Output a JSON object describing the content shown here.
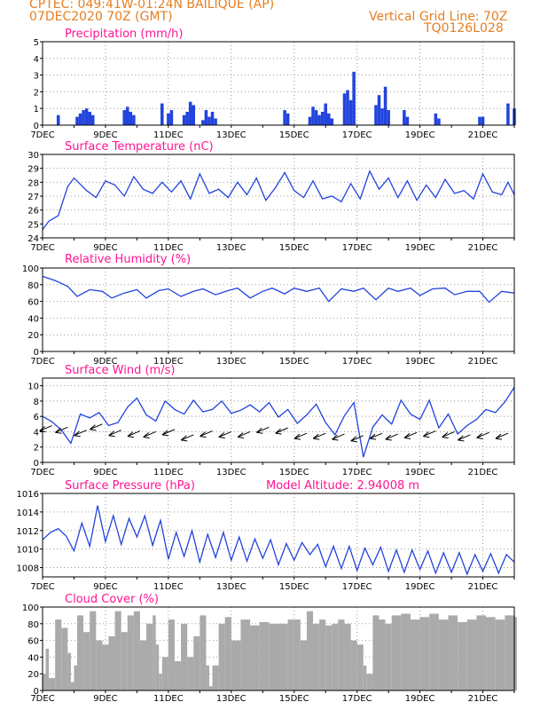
{
  "header": {
    "line1": "CPTEC:   049:41W-01:24N  BAILIQUE (AP)",
    "line2": "07DEC2020 70Z (GMT)",
    "grid_note": "Vertical Grid Line: 70Z",
    "code": "TQ0126L028"
  },
  "colors": {
    "header": "#e67e22",
    "title": "#ff1493",
    "series": "#2244dd",
    "cloud": "#aaaaaa",
    "grid": "#999999"
  },
  "chart_data": [
    {
      "id": "precip",
      "type": "bar",
      "title": "Precipitation (mm/h)",
      "ylim": [
        0,
        5
      ],
      "yticks": [
        0,
        1,
        2,
        3,
        4,
        5
      ],
      "x_day_range": [
        7,
        22
      ],
      "xticks": [
        "7DEC",
        "9DEC",
        "11DEC",
        "13DEC",
        "15DEC",
        "17DEC",
        "19DEC",
        "21DEC"
      ],
      "x": [
        7.5,
        8.1,
        8.2,
        8.3,
        8.4,
        8.5,
        8.6,
        9.6,
        9.7,
        9.8,
        9.9,
        10.8,
        11.0,
        11.1,
        11.5,
        11.6,
        11.7,
        11.8,
        12.1,
        12.2,
        12.3,
        12.4,
        12.5,
        14.7,
        14.8,
        15.5,
        15.6,
        15.7,
        15.8,
        15.9,
        16.0,
        16.1,
        16.2,
        16.6,
        16.7,
        16.8,
        16.9,
        17.6,
        17.7,
        17.8,
        17.9,
        18.0,
        18.5,
        18.6,
        19.5,
        19.6,
        20.9,
        21.0,
        21.8,
        22.0
      ],
      "values": [
        0.6,
        0.5,
        0.7,
        0.9,
        1.0,
        0.8,
        0.6,
        0.9,
        1.1,
        0.8,
        0.6,
        1.3,
        0.7,
        0.9,
        0.6,
        0.8,
        1.4,
        1.2,
        0.3,
        0.9,
        0.5,
        0.8,
        0.4,
        0.9,
        0.7,
        0.5,
        1.1,
        0.9,
        0.6,
        0.8,
        1.3,
        0.7,
        0.4,
        1.9,
        2.1,
        1.5,
        3.2,
        1.2,
        1.8,
        1.0,
        2.3,
        0.9,
        0.9,
        0.5,
        0.7,
        0.4,
        0.5,
        0.5,
        1.3,
        1.0
      ]
    },
    {
      "id": "temp",
      "type": "line",
      "title": "Surface Temperature (nC)",
      "ylim": [
        24,
        30
      ],
      "yticks": [
        24,
        25,
        26,
        27,
        28,
        29,
        30
      ],
      "x_day_range": [
        7,
        22
      ],
      "xticks": [
        "7DEC",
        "9DEC",
        "11DEC",
        "13DEC",
        "15DEC",
        "17DEC",
        "19DEC",
        "21DEC"
      ],
      "x": [
        7.0,
        7.2,
        7.5,
        7.8,
        8.0,
        8.4,
        8.7,
        9.0,
        9.3,
        9.6,
        9.9,
        10.2,
        10.5,
        10.8,
        11.1,
        11.4,
        11.7,
        12.0,
        12.3,
        12.6,
        12.9,
        13.2,
        13.5,
        13.8,
        14.1,
        14.4,
        14.7,
        15.0,
        15.3,
        15.6,
        15.9,
        16.2,
        16.5,
        16.8,
        17.1,
        17.4,
        17.7,
        18.0,
        18.3,
        18.6,
        18.9,
        19.2,
        19.5,
        19.8,
        20.1,
        20.4,
        20.7,
        21.0,
        21.3,
        21.6,
        21.8,
        22.0
      ],
      "values": [
        24.6,
        25.2,
        25.6,
        27.7,
        28.3,
        27.4,
        26.9,
        28.1,
        27.8,
        27.0,
        28.4,
        27.5,
        27.2,
        28.0,
        27.3,
        28.1,
        26.8,
        28.6,
        27.2,
        27.5,
        26.9,
        28.0,
        27.1,
        28.3,
        26.7,
        27.6,
        28.7,
        27.4,
        26.9,
        28.1,
        26.8,
        27.0,
        26.6,
        27.9,
        26.8,
        28.8,
        27.5,
        28.3,
        26.9,
        28.1,
        26.7,
        27.8,
        26.9,
        28.2,
        27.2,
        27.4,
        26.8,
        28.6,
        27.3,
        27.1,
        28.0,
        27.1
      ]
    },
    {
      "id": "rh",
      "type": "line",
      "title": "Relative Humidity (%)",
      "ylim": [
        0,
        100
      ],
      "yticks": [
        0,
        20,
        40,
        60,
        80,
        100
      ],
      "x_day_range": [
        7,
        22
      ],
      "xticks": [
        "7DEC",
        "9DEC",
        "11DEC",
        "13DEC",
        "15DEC",
        "17DEC",
        "19DEC",
        "21DEC"
      ],
      "x": [
        7.0,
        7.4,
        7.8,
        8.1,
        8.5,
        8.9,
        9.2,
        9.6,
        10.0,
        10.3,
        10.7,
        11.0,
        11.4,
        11.8,
        12.1,
        12.5,
        12.9,
        13.2,
        13.6,
        14.0,
        14.3,
        14.7,
        15.0,
        15.4,
        15.8,
        16.1,
        16.5,
        16.9,
        17.2,
        17.6,
        18.0,
        18.3,
        18.7,
        19.0,
        19.4,
        19.8,
        20.1,
        20.5,
        20.9,
        21.2,
        21.6,
        22.0
      ],
      "values": [
        90,
        85,
        78,
        66,
        74,
        72,
        64,
        70,
        74,
        64,
        73,
        75,
        66,
        72,
        75,
        68,
        73,
        76,
        64,
        72,
        76,
        69,
        76,
        72,
        76,
        60,
        75,
        72,
        76,
        62,
        76,
        72,
        76,
        67,
        75,
        76,
        68,
        72,
        72,
        59,
        72,
        70
      ]
    },
    {
      "id": "wind",
      "type": "line",
      "title": "Surface Wind (m/s)",
      "ylim": [
        0,
        11
      ],
      "yticks": [
        0,
        2,
        4,
        6,
        8,
        10
      ],
      "x_day_range": [
        7,
        22
      ],
      "xticks": [
        "7DEC",
        "9DEC",
        "11DEC",
        "13DEC",
        "15DEC",
        "17DEC",
        "19DEC",
        "21DEC"
      ],
      "x": [
        7.0,
        7.3,
        7.6,
        7.9,
        8.2,
        8.5,
        8.8,
        9.1,
        9.4,
        9.7,
        10.0,
        10.3,
        10.6,
        10.9,
        11.2,
        11.5,
        11.8,
        12.1,
        12.4,
        12.7,
        13.0,
        13.3,
        13.6,
        13.9,
        14.2,
        14.5,
        14.8,
        15.1,
        15.4,
        15.7,
        16.0,
        16.3,
        16.6,
        16.9,
        17.2,
        17.5,
        17.8,
        18.1,
        18.4,
        18.7,
        19.0,
        19.3,
        19.6,
        19.9,
        20.2,
        20.5,
        20.8,
        21.1,
        21.4,
        21.7,
        22.0
      ],
      "values": [
        6.0,
        5.3,
        4.2,
        2.5,
        6.3,
        5.8,
        6.5,
        4.8,
        5.2,
        7.2,
        8.4,
        6.2,
        5.4,
        8.0,
        6.9,
        6.3,
        8.1,
        6.6,
        6.9,
        8.0,
        6.4,
        6.8,
        7.5,
        6.6,
        7.8,
        5.9,
        6.9,
        5.1,
        6.2,
        7.6,
        5.2,
        3.6,
        6.1,
        7.8,
        0.7,
        4.6,
        6.2,
        5.0,
        8.1,
        6.3,
        5.6,
        8.1,
        4.5,
        6.3,
        3.7,
        4.8,
        5.6,
        6.9,
        6.5,
        7.9,
        9.8
      ],
      "arrows_x": [
        7.3,
        7.8,
        8.4,
        8.9,
        9.5,
        10.1,
        10.6,
        11.2,
        11.8,
        12.4,
        13.0,
        13.6,
        14.2,
        14.8,
        15.4,
        16.0,
        16.6,
        17.2,
        17.8,
        18.3,
        18.9,
        19.5,
        20.1,
        20.6,
        21.2,
        21.8
      ],
      "arrows_v": [
        4.8,
        4.6,
        4.2,
        5.0,
        4.2,
        4.1,
        4.0,
        4.3,
        3.6,
        4.1,
        4.0,
        4.0,
        4.6,
        4.5,
        3.8,
        3.8,
        3.7,
        3.5,
        3.8,
        3.7,
        3.9,
        4.1,
        4.0,
        3.6,
        3.9,
        3.8
      ]
    },
    {
      "id": "pres",
      "type": "line",
      "title": "Surface Pressure (hPa)",
      "annotation": "Model Altitude: 2.94008 m",
      "ylim": [
        1007,
        1016
      ],
      "yticks": [
        1008,
        1010,
        1012,
        1014,
        1016
      ],
      "x_day_range": [
        7,
        22
      ],
      "xticks": [
        "7DEC",
        "9DEC",
        "11DEC",
        "13DEC",
        "15DEC",
        "17DEC",
        "19DEC",
        "21DEC"
      ],
      "x": [
        7.0,
        7.25,
        7.5,
        7.75,
        8.0,
        8.25,
        8.5,
        8.75,
        9.0,
        9.25,
        9.5,
        9.75,
        10.0,
        10.25,
        10.5,
        10.75,
        11.0,
        11.25,
        11.5,
        11.75,
        12.0,
        12.25,
        12.5,
        12.75,
        13.0,
        13.25,
        13.5,
        13.75,
        14.0,
        14.25,
        14.5,
        14.75,
        15.0,
        15.25,
        15.5,
        15.75,
        16.0,
        16.25,
        16.5,
        16.75,
        17.0,
        17.25,
        17.5,
        17.75,
        18.0,
        18.25,
        18.5,
        18.75,
        19.0,
        19.25,
        19.5,
        19.75,
        20.0,
        20.25,
        20.5,
        20.75,
        21.0,
        21.25,
        21.5,
        21.75,
        22.0
      ],
      "values": [
        1011.0,
        1011.8,
        1012.2,
        1011.4,
        1009.8,
        1012.8,
        1010.3,
        1014.7,
        1010.8,
        1013.6,
        1010.5,
        1013.3,
        1011.3,
        1013.6,
        1010.4,
        1013.1,
        1008.9,
        1011.8,
        1009.2,
        1012.0,
        1008.6,
        1011.6,
        1009.1,
        1011.8,
        1008.8,
        1011.3,
        1008.7,
        1011.1,
        1009.0,
        1011.0,
        1008.3,
        1010.6,
        1008.8,
        1010.7,
        1009.4,
        1010.5,
        1008.1,
        1010.3,
        1007.9,
        1010.3,
        1007.7,
        1010.1,
        1008.3,
        1010.2,
        1007.6,
        1009.9,
        1007.5,
        1009.9,
        1007.8,
        1009.8,
        1007.4,
        1009.6,
        1007.5,
        1009.6,
        1007.3,
        1009.4,
        1007.6,
        1009.5,
        1007.4,
        1009.4,
        1008.6
      ]
    },
    {
      "id": "cloud",
      "type": "area",
      "title": "Cloud Cover (%)",
      "ylim": [
        0,
        100
      ],
      "yticks": [
        0,
        20,
        40,
        60,
        80,
        100
      ],
      "x_day_range": [
        7,
        22
      ],
      "xticks": [
        "7DEC",
        "9DEC",
        "11DEC",
        "13DEC",
        "15DEC",
        "17DEC",
        "19DEC",
        "21DEC"
      ],
      "x": [
        7.0,
        7.1,
        7.2,
        7.4,
        7.6,
        7.8,
        7.9,
        8.0,
        8.1,
        8.3,
        8.5,
        8.7,
        8.9,
        9.1,
        9.3,
        9.5,
        9.7,
        9.9,
        10.1,
        10.3,
        10.5,
        10.6,
        10.7,
        10.8,
        11.0,
        11.2,
        11.4,
        11.6,
        11.8,
        12.0,
        12.2,
        12.3,
        12.4,
        12.6,
        12.8,
        13.0,
        13.3,
        13.6,
        13.9,
        14.2,
        14.5,
        14.8,
        15.0,
        15.2,
        15.4,
        15.6,
        15.8,
        16.0,
        16.2,
        16.4,
        16.6,
        16.8,
        17.0,
        17.2,
        17.3,
        17.5,
        17.7,
        17.9,
        18.1,
        18.4,
        18.7,
        19.0,
        19.3,
        19.6,
        19.9,
        20.2,
        20.5,
        20.8,
        21.1,
        21.4,
        21.7,
        22.0
      ],
      "values": [
        20,
        50,
        15,
        85,
        75,
        45,
        10,
        30,
        90,
        70,
        95,
        60,
        55,
        65,
        95,
        70,
        90,
        95,
        60,
        80,
        90,
        55,
        20,
        40,
        85,
        35,
        80,
        40,
        65,
        90,
        30,
        5,
        30,
        80,
        88,
        60,
        85,
        78,
        82,
        80,
        80,
        85,
        85,
        60,
        95,
        80,
        85,
        78,
        80,
        85,
        80,
        60,
        55,
        30,
        20,
        90,
        85,
        80,
        90,
        92,
        85,
        88,
        92,
        85,
        90,
        82,
        85,
        90,
        88,
        85,
        90,
        88
      ]
    }
  ]
}
